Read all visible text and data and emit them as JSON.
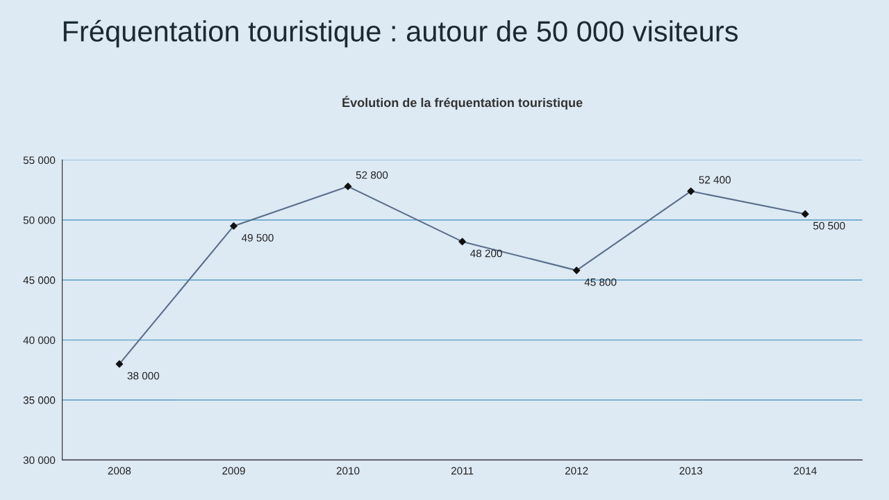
{
  "chart_data": {
    "type": "line",
    "title": "Fréquentation touristique : autour de 50 000 visiteurs",
    "subtitle": "Évolution de la fréquentation touristique",
    "categories": [
      "2008",
      "2009",
      "2010",
      "2011",
      "2012",
      "2013",
      "2014"
    ],
    "series": [
      {
        "color": "#5a6e8c",
        "values": [
          38000,
          49500,
          52800,
          48200,
          45800,
          52400,
          50500
        ],
        "value_labels": [
          "38 000",
          "49 500",
          "52 800",
          "48 200",
          "45 800",
          "52 400",
          "50 500"
        ]
      }
    ],
    "ylim": [
      30000,
      55000
    ],
    "yticks": [
      {
        "value": 30000,
        "label": "30 000"
      },
      {
        "value": 35000,
        "label": "35 000"
      },
      {
        "value": 40000,
        "label": "40 000"
      },
      {
        "value": 45000,
        "label": "45 000"
      },
      {
        "value": 50000,
        "label": "50 000"
      },
      {
        "value": 55000,
        "label": "55 000"
      }
    ],
    "grid": "y",
    "marker": "diamond",
    "line_style": "solid",
    "legend": false
  }
}
